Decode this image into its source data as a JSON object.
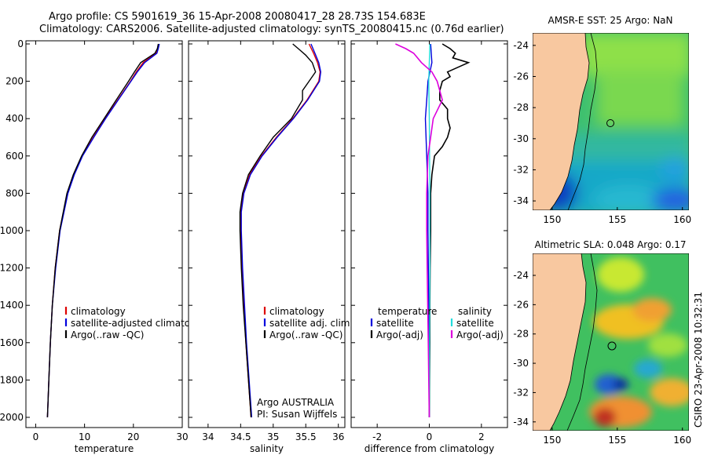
{
  "titles": {
    "line1": "Argo profile: CS 5901619_36 15-Apr-2008 20080417_28 28.73S 154.683E",
    "line2": "Climatology: CARS2006. Satellite-adjusted climatology: synTS_20080415.nc (0.76d earlier)"
  },
  "colors": {
    "climatology": "#dd0000",
    "satellite": "#0000dd",
    "argo": "#000000",
    "salinity_satellite": "#22dddd",
    "salinity_argo": "#dd00dd",
    "land": "#f8c8a0"
  },
  "chart_data": [
    {
      "type": "line",
      "panel": "temperature",
      "xlabel": "temperature",
      "ylabel": "",
      "xlim": [
        -2,
        30
      ],
      "ylim": [
        2000,
        0
      ],
      "y_inverted": true,
      "xticks": [
        "0",
        "10",
        "20",
        "30"
      ],
      "yticks": [
        "0",
        "200",
        "400",
        "600",
        "800",
        "1000",
        "1200",
        "1400",
        "1600",
        "1800",
        "2000"
      ],
      "legend": [
        "climatology",
        "satellite-adjusted climatology",
        "Argo(..raw -QC)"
      ],
      "series": [
        {
          "name": "climatology",
          "depth": [
            0,
            25,
            50,
            100,
            150,
            200,
            300,
            400,
            500,
            600,
            700,
            800,
            1000,
            1200,
            1400,
            1600,
            1800,
            2000
          ],
          "values": [
            25.2,
            25.0,
            24.6,
            22.0,
            20.6,
            19.4,
            16.8,
            14.2,
            11.8,
            9.5,
            7.8,
            6.5,
            4.9,
            4.0,
            3.4,
            3.0,
            2.7,
            2.4
          ]
        },
        {
          "name": "satellite-adjusted climatology",
          "depth": [
            0,
            25,
            50,
            100,
            150,
            200,
            300,
            400,
            500,
            600,
            700,
            800,
            1000,
            1200,
            1400,
            1600,
            1800,
            2000
          ],
          "values": [
            25.3,
            25.1,
            24.8,
            22.3,
            20.8,
            19.5,
            16.9,
            14.3,
            11.9,
            9.6,
            7.9,
            6.6,
            5.0,
            4.1,
            3.4,
            3.0,
            2.7,
            2.4
          ]
        },
        {
          "name": "Argo(..raw -QC)",
          "depth": [
            0,
            25,
            50,
            100,
            150,
            200,
            300,
            400,
            500,
            600,
            700,
            800,
            1000,
            1200,
            1400,
            1600,
            1800,
            2000
          ],
          "values": [
            25.1,
            24.9,
            24.4,
            21.5,
            20.2,
            19.0,
            16.5,
            14.0,
            11.5,
            9.4,
            7.7,
            6.4,
            4.9,
            4.0,
            3.4,
            3.0,
            2.7,
            2.4
          ]
        }
      ]
    },
    {
      "type": "line",
      "panel": "salinity",
      "xlabel": "salinity",
      "xlim": [
        33.7,
        36.1
      ],
      "ylim": [
        2000,
        0
      ],
      "y_inverted": true,
      "xticks": [
        "34",
        "34.5",
        "35",
        "35.5",
        "36"
      ],
      "legend": [
        "climatology",
        "satellite adj. clim.",
        "Argo(..raw -QC)"
      ],
      "annotation": [
        "Argo AUSTRALIA",
        "PI: Susan Wijffels"
      ],
      "series": [
        {
          "name": "climatology",
          "depth": [
            0,
            50,
            100,
            150,
            200,
            300,
            400,
            500,
            600,
            700,
            800,
            900,
            1000,
            1200,
            1400,
            1600,
            1800,
            2000
          ],
          "values": [
            35.55,
            35.62,
            35.68,
            35.72,
            35.7,
            35.52,
            35.3,
            35.05,
            34.82,
            34.64,
            34.54,
            34.5,
            34.5,
            34.52,
            34.55,
            34.58,
            34.62,
            34.66
          ]
        },
        {
          "name": "satellite adj. clim.",
          "depth": [
            0,
            50,
            100,
            150,
            200,
            300,
            400,
            500,
            600,
            700,
            800,
            900,
            1000,
            1200,
            1400,
            1600,
            1800,
            2000
          ],
          "values": [
            35.58,
            35.64,
            35.7,
            35.73,
            35.71,
            35.53,
            35.31,
            35.06,
            34.83,
            34.65,
            34.55,
            34.51,
            34.51,
            34.53,
            34.56,
            34.59,
            34.63,
            34.67
          ]
        },
        {
          "name": "Argo(..raw -QC)",
          "depth": [
            0,
            30,
            60,
            100,
            150,
            200,
            250,
            300,
            400,
            500,
            600,
            700,
            800,
            900,
            1000,
            1200,
            1400,
            1600,
            1800,
            2000
          ],
          "values": [
            35.3,
            35.4,
            35.5,
            35.6,
            35.65,
            35.55,
            35.45,
            35.45,
            35.28,
            35.0,
            34.8,
            34.62,
            34.53,
            34.49,
            34.49,
            34.51,
            34.54,
            34.58,
            34.62,
            34.66
          ]
        }
      ]
    },
    {
      "type": "line",
      "panel": "difference",
      "xlabel": "difference from climatology",
      "xlim": [
        -3,
        3
      ],
      "ylim": [
        2000,
        0
      ],
      "y_inverted": true,
      "xticks": [
        "-2",
        "0",
        "2"
      ],
      "legend_temperature": [
        "temperature",
        "satellite",
        "Argo(-adj)"
      ],
      "legend_salinity": [
        "salinity",
        "satellite",
        "Argo(-adj)"
      ],
      "series": [
        {
          "name": "temperature satellite",
          "depth": [
            0,
            100,
            200,
            300,
            400,
            600,
            800,
            1000,
            1400,
            1800,
            2000
          ],
          "values": [
            0.05,
            0.1,
            -0.05,
            -0.1,
            -0.15,
            -0.1,
            -0.05,
            -0.05,
            -0.02,
            0.0,
            0.0
          ]
        },
        {
          "name": "temperature Argo(-adj)",
          "depth": [
            0,
            25,
            50,
            75,
            100,
            150,
            175,
            200,
            250,
            300,
            350,
            400,
            450,
            500,
            550,
            600,
            700,
            800,
            900,
            1000,
            1200,
            1400,
            1600,
            1800,
            2000
          ],
          "values": [
            0.5,
            0.8,
            1.0,
            0.9,
            1.5,
            0.7,
            0.8,
            0.5,
            0.4,
            0.4,
            0.7,
            0.7,
            0.8,
            0.7,
            0.5,
            0.2,
            0.1,
            0.05,
            0.05,
            0.05,
            0.03,
            0.02,
            0.02,
            0.01,
            0.0
          ]
        },
        {
          "name": "salinity satellite",
          "depth": [
            0,
            100,
            200,
            400,
            800,
            1200,
            1600,
            2000
          ],
          "values": [
            0.02,
            0.0,
            -0.02,
            0.0,
            0.02,
            0.02,
            0.01,
            0.0
          ]
        },
        {
          "name": "salinity Argo(-adj)",
          "depth": [
            0,
            25,
            50,
            100,
            150,
            200,
            250,
            300,
            400,
            500,
            600,
            800,
            1000,
            1200,
            1400,
            1600,
            1800,
            2000
          ],
          "values": [
            -1.3,
            -0.9,
            -0.6,
            -0.3,
            0.1,
            0.3,
            0.4,
            0.5,
            0.15,
            0.05,
            -0.05,
            -0.1,
            -0.1,
            -0.08,
            -0.06,
            -0.04,
            -0.02,
            0.0
          ]
        }
      ]
    },
    {
      "type": "heatmap",
      "panel": "sst-map",
      "title": "AMSR-E SST: 25 Argo: NaN",
      "xlim": [
        148.5,
        160.5
      ],
      "ylim": [
        -34.6,
        -23.2
      ],
      "xticks": [
        "150",
        "155",
        "160"
      ],
      "yticks": [
        "-24",
        "-26",
        "-28",
        "-30",
        "-32",
        "-34"
      ],
      "float_position": {
        "lon": 154.683,
        "lat": -28.73
      }
    },
    {
      "type": "heatmap",
      "panel": "sla-map",
      "title": "Altimetric SLA: 0.048 Argo: 0.17",
      "xlim": [
        148.5,
        160.5
      ],
      "ylim": [
        -34.6,
        -22.5
      ],
      "xticks": [
        "150",
        "155",
        "160"
      ],
      "yticks": [
        "-24",
        "-26",
        "-28",
        "-30",
        "-32",
        "-34"
      ],
      "float_position": {
        "lon": 154.683,
        "lat": -28.73
      }
    }
  ],
  "stamp": "CSIRO 23-Apr-2008 10:32:31"
}
